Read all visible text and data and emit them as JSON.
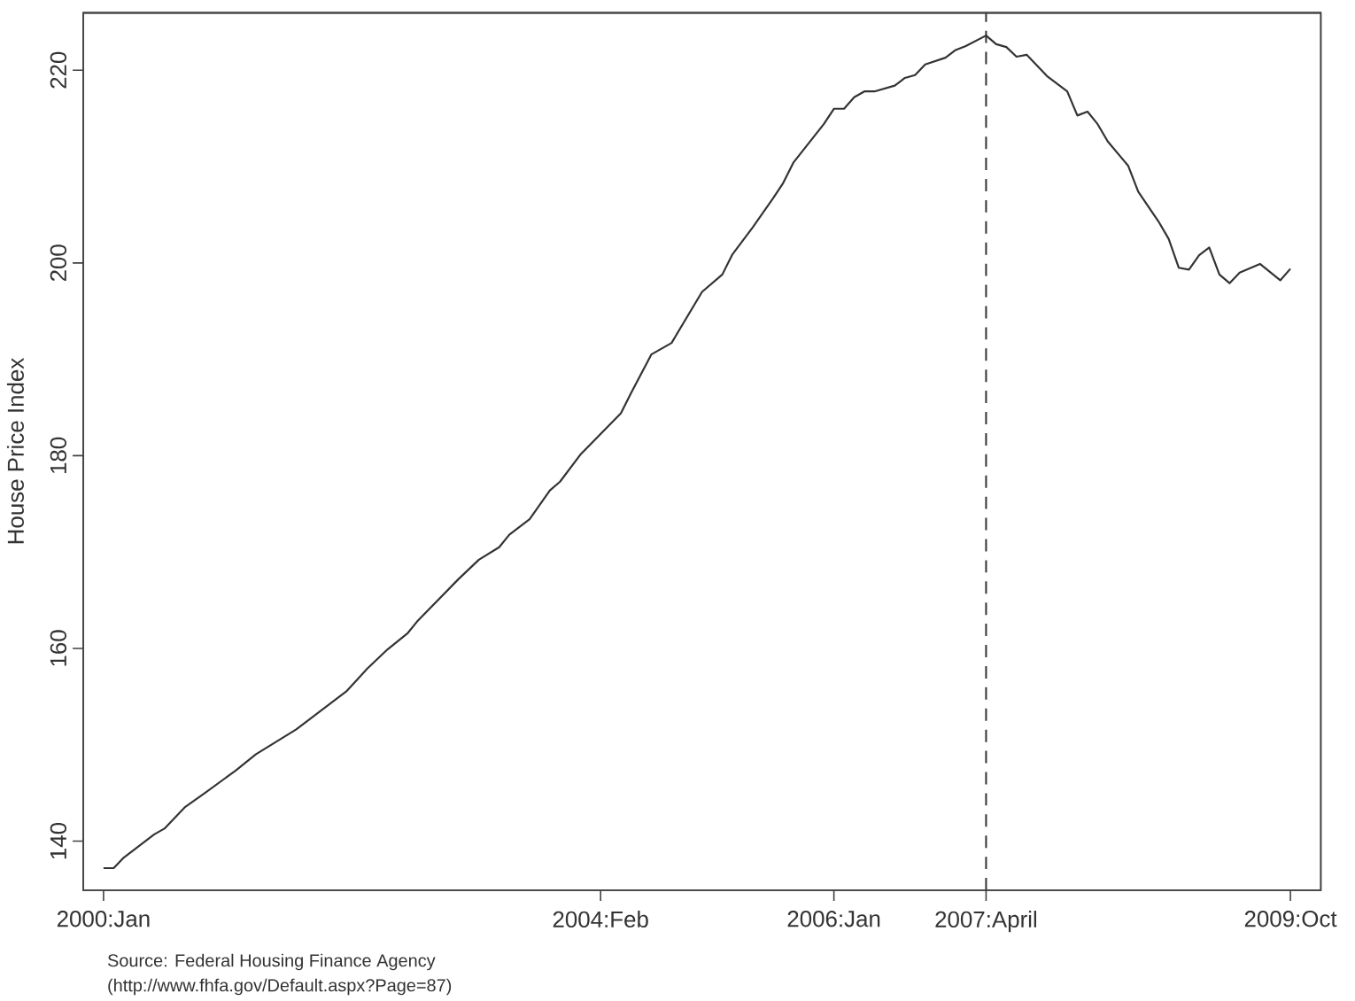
{
  "chart_data": {
    "type": "line",
    "ylabel": "House Price Index",
    "x": [
      "2000-01",
      "2000-02",
      "2000-03",
      "2000-06",
      "2000-07",
      "2000-09",
      "2000-11",
      "2001-02",
      "2001-04",
      "2001-08",
      "2002-01",
      "2002-03",
      "2002-05",
      "2002-07",
      "2002-08",
      "2002-12",
      "2003-02",
      "2003-04",
      "2003-05",
      "2003-07",
      "2003-09",
      "2003-10",
      "2003-12",
      "2004-04",
      "2004-05",
      "2004-07",
      "2004-09",
      "2004-12",
      "2005-02",
      "2005-03",
      "2005-05",
      "2005-07",
      "2005-08",
      "2005-09",
      "2005-12",
      "2006-01",
      "2006-02",
      "2006-03",
      "2006-04",
      "2006-05",
      "2006-07",
      "2006-08",
      "2006-09",
      "2006-10",
      "2006-12",
      "2007-01",
      "2007-02",
      "2007-04",
      "2007-05",
      "2007-06",
      "2007-07",
      "2007-08",
      "2007-10",
      "2007-12",
      "2008-01",
      "2008-02",
      "2008-03",
      "2008-04",
      "2008-06",
      "2008-07",
      "2008-09",
      "2008-10",
      "2008-11",
      "2008-12",
      "2009-01",
      "2009-02",
      "2009-03",
      "2009-04",
      "2009-05",
      "2009-07",
      "2009-09",
      "2009-10"
    ],
    "series": [
      {
        "color": "#333333",
        "values": [
          137.2,
          137.2,
          138.3,
          140.7,
          141.3,
          143.5,
          145.0,
          147.3,
          149.0,
          151.6,
          155.6,
          157.9,
          159.9,
          161.6,
          162.9,
          167.2,
          169.2,
          170.5,
          171.8,
          173.4,
          176.4,
          177.3,
          180.1,
          184.4,
          186.5,
          190.5,
          191.7,
          197.0,
          198.8,
          200.9,
          203.7,
          206.7,
          208.3,
          210.4,
          214.4,
          216.0,
          216.0,
          217.2,
          217.8,
          217.8,
          218.4,
          219.2,
          219.5,
          220.6,
          221.3,
          222.1,
          222.5,
          223.6,
          222.7,
          222.4,
          221.4,
          221.6,
          219.4,
          217.8,
          215.3,
          215.7,
          214.4,
          212.6,
          210.1,
          207.4,
          204.3,
          202.5,
          199.5,
          199.3,
          200.8,
          201.6,
          198.8,
          197.9,
          199.0,
          199.9,
          198.2,
          199.4
        ]
      }
    ],
    "xlim": [
      "1999-11",
      "2010-01"
    ],
    "xticks": [
      {
        "value": "2000-01",
        "label": "2000:Jan"
      },
      {
        "value": "2004-02",
        "label": "2004:Feb"
      },
      {
        "value": "2006-01",
        "label": "2006:Jan"
      },
      {
        "value": "2007-04",
        "label": "2007:April"
      },
      {
        "value": "2009-10",
        "label": "2009:Oct"
      }
    ],
    "ylim": [
      134.9,
      226
    ],
    "yticks": [
      140,
      160,
      180,
      200,
      220
    ],
    "ref_lines": [
      {
        "axis": "x",
        "value": "2007-04",
        "color": "#333333",
        "line_style": "dashed"
      }
    ],
    "annotations": [
      "Source: Federal Housing Finance Agency",
      "(http://www.fhfa.gov/Default.aspx?Page=87)"
    ],
    "grid": false,
    "marker": "none",
    "line_style": "solid"
  }
}
